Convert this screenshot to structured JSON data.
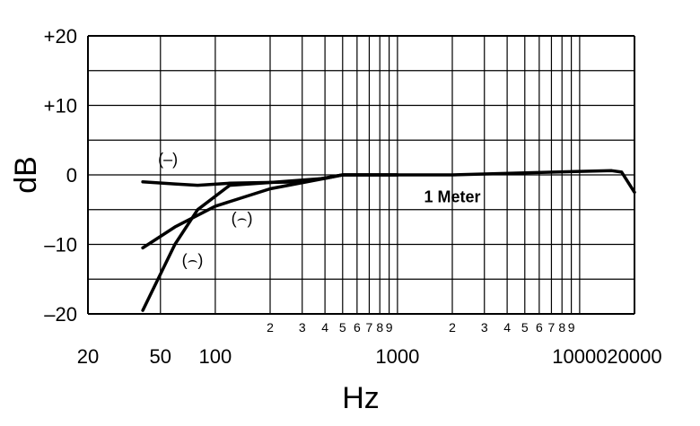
{
  "chart_data": {
    "type": "line",
    "title": "",
    "xlabel": "Hz",
    "ylabel": "dB",
    "xscale": "log",
    "xlim": [
      20,
      20000
    ],
    "ylim": [
      -20,
      20
    ],
    "grid": true,
    "y_ticks": [
      {
        "v": 20,
        "label": "+20"
      },
      {
        "v": 10,
        "label": "+10"
      },
      {
        "v": 0,
        "label": "0"
      },
      {
        "v": -10,
        "label": "–10"
      },
      {
        "v": -20,
        "label": "–20"
      }
    ],
    "x_major_ticks": [
      {
        "v": 20,
        "label": "20"
      },
      {
        "v": 50,
        "label": "50"
      },
      {
        "v": 100,
        "label": "100"
      },
      {
        "v": 1000,
        "label": "1000"
      },
      {
        "v": 10000,
        "label": "10000"
      },
      {
        "v": 20000,
        "label": "20000"
      }
    ],
    "x_minor_ticks": [
      {
        "v": 200,
        "label": "2"
      },
      {
        "v": 300,
        "label": "3"
      },
      {
        "v": 400,
        "label": "4"
      },
      {
        "v": 500,
        "label": "5"
      },
      {
        "v": 600,
        "label": "6"
      },
      {
        "v": 700,
        "label": "7"
      },
      {
        "v": 800,
        "label": "8"
      },
      {
        "v": 900,
        "label": "9"
      },
      {
        "v": 2000,
        "label": "2"
      },
      {
        "v": 3000,
        "label": "3"
      },
      {
        "v": 4000,
        "label": "4"
      },
      {
        "v": 5000,
        "label": "5"
      },
      {
        "v": 6000,
        "label": "6"
      },
      {
        "v": 7000,
        "label": "7"
      },
      {
        "v": 8000,
        "label": "8"
      },
      {
        "v": 9000,
        "label": "9"
      }
    ],
    "annotations": [
      {
        "text": "1 Meter",
        "x": 2000,
        "y": -3
      }
    ],
    "series": [
      {
        "name": "(–)",
        "label_at": [
          55,
          1.5
        ],
        "x": [
          40,
          60,
          80,
          120,
          300,
          500,
          1000,
          2000,
          5000,
          10000,
          15000,
          17000,
          20000
        ],
        "y": [
          -1,
          -1.3,
          -1.5,
          -1.2,
          -1,
          0,
          0,
          0,
          0.3,
          0.5,
          0.6,
          0.4,
          -2.5
        ]
      },
      {
        "name": "(⌢)",
        "label_at": [
          140,
          -7
        ],
        "x": [
          40,
          60,
          100,
          200,
          400,
          500,
          1000
        ],
        "y": [
          -10.5,
          -7.5,
          -4.5,
          -2,
          -0.5,
          0,
          0
        ]
      },
      {
        "name": "(⌢)",
        "label_at": [
          75,
          -13
        ],
        "x": [
          40,
          60,
          80,
          120,
          200,
          400,
          500,
          1000
        ],
        "y": [
          -19.5,
          -10,
          -5,
          -1.5,
          -1.1,
          -0.5,
          0,
          0
        ]
      }
    ]
  }
}
